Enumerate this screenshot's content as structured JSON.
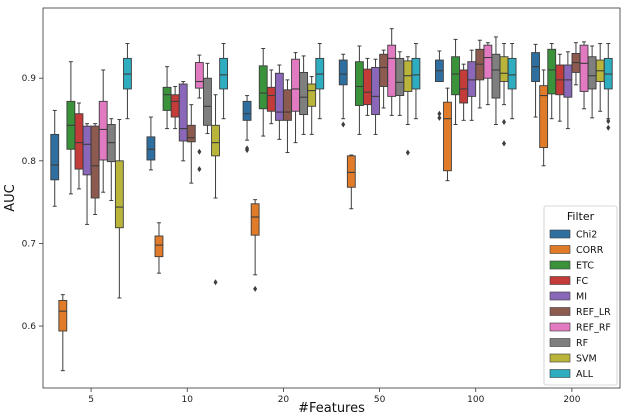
{
  "chart_data": {
    "type": "box",
    "xlabel": "#Features",
    "ylabel": "AUC",
    "ylim": [
      0.525,
      0.985
    ],
    "yticks": [
      "0.6",
      "0.7",
      "0.8",
      "0.9"
    ],
    "categories": [
      "5",
      "10",
      "20",
      "50",
      "100",
      "200"
    ],
    "grid": false,
    "legend": {
      "title": "Filter",
      "position": "lower-right"
    },
    "series": [
      {
        "name": "Chi2",
        "color": "#2f6f9f",
        "boxes": [
          {
            "whislo": 0.745,
            "q1": 0.777,
            "med": 0.795,
            "q3": 0.832,
            "whishi": 0.861,
            "fliers": []
          },
          {
            "whislo": 0.789,
            "q1": 0.801,
            "med": 0.814,
            "q3": 0.829,
            "whishi": 0.853,
            "fliers": []
          },
          {
            "whislo": 0.825,
            "q1": 0.849,
            "med": 0.857,
            "q3": 0.872,
            "whishi": 0.879,
            "fliers": [
              0.815,
              0.813
            ]
          },
          {
            "whislo": 0.851,
            "q1": 0.892,
            "med": 0.905,
            "q3": 0.922,
            "whishi": 0.929,
            "fliers": [
              0.844
            ]
          },
          {
            "whislo": 0.896,
            "q1": 0.896,
            "med": 0.909,
            "q3": 0.922,
            "whishi": 0.933,
            "fliers": [
              0.857,
              0.852
            ]
          },
          {
            "whislo": 0.853,
            "q1": 0.896,
            "med": 0.914,
            "q3": 0.931,
            "whishi": 0.941,
            "fliers": []
          }
        ]
      },
      {
        "name": "CORR",
        "color": "#e07b2a",
        "boxes": [
          {
            "whislo": 0.546,
            "q1": 0.594,
            "med": 0.618,
            "q3": 0.631,
            "whishi": 0.638,
            "fliers": []
          },
          {
            "whislo": 0.664,
            "q1": 0.684,
            "med": 0.698,
            "q3": 0.709,
            "whishi": 0.725,
            "fliers": []
          },
          {
            "whislo": 0.662,
            "q1": 0.71,
            "med": 0.732,
            "q3": 0.748,
            "whishi": 0.753,
            "fliers": [
              0.645
            ]
          },
          {
            "whislo": 0.742,
            "q1": 0.768,
            "med": 0.786,
            "q3": 0.806,
            "whishi": 0.807,
            "fliers": []
          },
          {
            "whislo": 0.776,
            "q1": 0.788,
            "med": 0.851,
            "q3": 0.871,
            "whishi": 0.888,
            "fliers": []
          },
          {
            "whislo": 0.794,
            "q1": 0.816,
            "med": 0.879,
            "q3": 0.891,
            "whishi": 0.91,
            "fliers": []
          }
        ]
      },
      {
        "name": "ETC",
        "color": "#3a923a",
        "boxes": [
          {
            "whislo": 0.76,
            "q1": 0.814,
            "med": 0.843,
            "q3": 0.872,
            "whishi": 0.92,
            "fliers": []
          },
          {
            "whislo": 0.839,
            "q1": 0.861,
            "med": 0.88,
            "q3": 0.889,
            "whishi": 0.914,
            "fliers": []
          },
          {
            "whislo": 0.83,
            "q1": 0.863,
            "med": 0.882,
            "q3": 0.915,
            "whishi": 0.936,
            "fliers": []
          },
          {
            "whislo": 0.832,
            "q1": 0.867,
            "med": 0.89,
            "q3": 0.92,
            "whishi": 0.939,
            "fliers": []
          },
          {
            "whislo": 0.844,
            "q1": 0.88,
            "med": 0.905,
            "q3": 0.926,
            "whishi": 0.947,
            "fliers": []
          },
          {
            "whislo": 0.851,
            "q1": 0.881,
            "med": 0.91,
            "q3": 0.935,
            "whishi": 0.942,
            "fliers": []
          }
        ]
      },
      {
        "name": "FC",
        "color": "#c43c39",
        "boxes": [
          {
            "whislo": 0.766,
            "q1": 0.79,
            "med": 0.822,
            "q3": 0.857,
            "whishi": 0.87,
            "fliers": []
          },
          {
            "whislo": 0.839,
            "q1": 0.853,
            "med": 0.872,
            "q3": 0.88,
            "whishi": 0.89,
            "fliers": []
          },
          {
            "whislo": 0.845,
            "q1": 0.86,
            "med": 0.879,
            "q3": 0.889,
            "whishi": 0.91,
            "fliers": []
          },
          {
            "whislo": 0.855,
            "q1": 0.868,
            "med": 0.883,
            "q3": 0.911,
            "whishi": 0.924,
            "fliers": []
          },
          {
            "whislo": 0.849,
            "q1": 0.87,
            "med": 0.887,
            "q3": 0.91,
            "whishi": 0.917,
            "fliers": []
          },
          {
            "whislo": 0.848,
            "q1": 0.88,
            "med": 0.898,
            "q3": 0.916,
            "whishi": 0.929,
            "fliers": []
          }
        ]
      },
      {
        "name": "MI",
        "color": "#8a67b8",
        "boxes": [
          {
            "whislo": 0.723,
            "q1": 0.783,
            "med": 0.82,
            "q3": 0.842,
            "whishi": 0.845,
            "fliers": []
          },
          {
            "whislo": 0.8,
            "q1": 0.824,
            "med": 0.839,
            "q3": 0.893,
            "whishi": 0.896,
            "fliers": []
          },
          {
            "whislo": 0.826,
            "q1": 0.849,
            "med": 0.859,
            "q3": 0.906,
            "whishi": 0.916,
            "fliers": []
          },
          {
            "whislo": 0.832,
            "q1": 0.856,
            "med": 0.878,
            "q3": 0.913,
            "whishi": 0.923,
            "fliers": []
          },
          {
            "whislo": 0.849,
            "q1": 0.878,
            "med": 0.898,
            "q3": 0.92,
            "whishi": 0.934,
            "fliers": []
          },
          {
            "whislo": 0.839,
            "q1": 0.877,
            "med": 0.898,
            "q3": 0.916,
            "whishi": 0.932,
            "fliers": []
          }
        ]
      },
      {
        "name": "REF_LR",
        "color": "#8c5a4f",
        "boxes": [
          {
            "whislo": 0.735,
            "q1": 0.755,
            "med": 0.794,
            "q3": 0.842,
            "whishi": 0.845,
            "fliers": []
          },
          {
            "whislo": 0.773,
            "q1": 0.823,
            "med": 0.828,
            "q3": 0.843,
            "whishi": 0.868,
            "fliers": []
          },
          {
            "whislo": 0.81,
            "q1": 0.849,
            "med": 0.859,
            "q3": 0.886,
            "whishi": 0.898,
            "fliers": []
          },
          {
            "whislo": 0.864,
            "q1": 0.89,
            "med": 0.913,
            "q3": 0.929,
            "whishi": 0.934,
            "fliers": []
          },
          {
            "whislo": 0.864,
            "q1": 0.898,
            "med": 0.917,
            "q3": 0.935,
            "whishi": 0.946,
            "fliers": []
          },
          {
            "whislo": 0.892,
            "q1": 0.907,
            "med": 0.919,
            "q3": 0.93,
            "whishi": 0.943,
            "fliers": []
          }
        ]
      },
      {
        "name": "REF_RF",
        "color": "#e17ac1",
        "boxes": [
          {
            "whislo": 0.762,
            "q1": 0.801,
            "med": 0.838,
            "q3": 0.872,
            "whishi": 0.91,
            "fliers": []
          },
          {
            "whislo": 0.876,
            "q1": 0.888,
            "med": 0.896,
            "q3": 0.919,
            "whishi": 0.928,
            "fliers": [
              0.811,
              0.79
            ]
          },
          {
            "whislo": 0.822,
            "q1": 0.86,
            "med": 0.887,
            "q3": 0.923,
            "whishi": 0.931,
            "fliers": []
          },
          {
            "whislo": 0.855,
            "q1": 0.878,
            "med": 0.924,
            "q3": 0.94,
            "whishi": 0.96,
            "fliers": []
          },
          {
            "whislo": 0.868,
            "q1": 0.9,
            "med": 0.925,
            "q3": 0.94,
            "whishi": 0.943,
            "fliers": []
          },
          {
            "whislo": 0.863,
            "q1": 0.884,
            "med": 0.918,
            "q3": 0.94,
            "whishi": 0.944,
            "fliers": []
          }
        ]
      },
      {
        "name": "RF",
        "color": "#7f7f7f",
        "boxes": [
          {
            "whislo": 0.752,
            "q1": 0.799,
            "med": 0.822,
            "q3": 0.844,
            "whishi": 0.851,
            "fliers": []
          },
          {
            "whislo": 0.833,
            "q1": 0.843,
            "med": 0.866,
            "q3": 0.9,
            "whishi": 0.918,
            "fliers": []
          },
          {
            "whislo": 0.832,
            "q1": 0.856,
            "med": 0.877,
            "q3": 0.907,
            "whishi": 0.927,
            "fliers": []
          },
          {
            "whislo": 0.855,
            "q1": 0.879,
            "med": 0.895,
            "q3": 0.924,
            "whishi": 0.932,
            "fliers": []
          },
          {
            "whislo": 0.844,
            "q1": 0.876,
            "med": 0.91,
            "q3": 0.929,
            "whishi": 0.95,
            "fliers": []
          },
          {
            "whislo": 0.852,
            "q1": 0.887,
            "med": 0.903,
            "q3": 0.926,
            "whishi": 0.939,
            "fliers": []
          }
        ]
      },
      {
        "name": "SVM",
        "color": "#b9b53a",
        "boxes": [
          {
            "whislo": 0.634,
            "q1": 0.719,
            "med": 0.744,
            "q3": 0.8,
            "whishi": 0.85,
            "fliers": []
          },
          {
            "whislo": 0.755,
            "q1": 0.806,
            "med": 0.822,
            "q3": 0.843,
            "whishi": 0.88,
            "fliers": [
              0.653
            ]
          },
          {
            "whislo": 0.832,
            "q1": 0.866,
            "med": 0.885,
            "q3": 0.893,
            "whishi": 0.902,
            "fliers": []
          },
          {
            "whislo": 0.844,
            "q1": 0.884,
            "med": 0.903,
            "q3": 0.921,
            "whishi": 0.926,
            "fliers": [
              0.81
            ]
          },
          {
            "whislo": 0.868,
            "q1": 0.896,
            "med": 0.906,
            "q3": 0.926,
            "whishi": 0.942,
            "fliers": [
              0.847,
              0.821
            ]
          },
          {
            "whislo": 0.86,
            "q1": 0.896,
            "med": 0.909,
            "q3": 0.922,
            "whishi": 0.942,
            "fliers": []
          }
        ]
      },
      {
        "name": "ALL",
        "color": "#2eadc1",
        "boxes": [
          {
            "whislo": 0.851,
            "q1": 0.887,
            "med": 0.905,
            "q3": 0.924,
            "whishi": 0.942,
            "fliers": []
          },
          {
            "whislo": 0.851,
            "q1": 0.887,
            "med": 0.904,
            "q3": 0.924,
            "whishi": 0.942,
            "fliers": []
          },
          {
            "whislo": 0.851,
            "q1": 0.887,
            "med": 0.905,
            "q3": 0.924,
            "whishi": 0.942,
            "fliers": []
          },
          {
            "whislo": 0.851,
            "q1": 0.887,
            "med": 0.904,
            "q3": 0.924,
            "whishi": 0.942,
            "fliers": []
          },
          {
            "whislo": 0.851,
            "q1": 0.887,
            "med": 0.904,
            "q3": 0.924,
            "whishi": 0.942,
            "fliers": []
          },
          {
            "whislo": 0.851,
            "q1": 0.887,
            "med": 0.905,
            "q3": 0.924,
            "whishi": 0.942,
            "fliers": [
              0.848,
              0.84
            ]
          }
        ]
      }
    ]
  }
}
